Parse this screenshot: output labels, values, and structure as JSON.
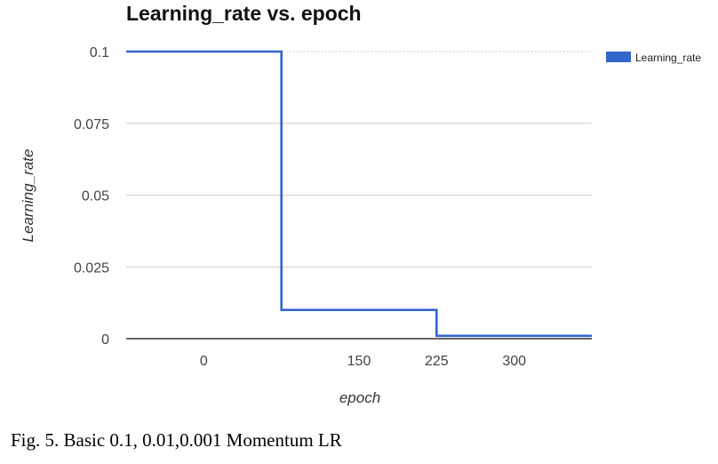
{
  "chart_data": {
    "type": "line",
    "title": "Learning_rate vs. epoch",
    "xlabel": "epoch",
    "ylabel": "Learning_rate",
    "x_ticks": [
      0,
      150,
      225,
      300
    ],
    "y_ticks": [
      0,
      0.025,
      0.05,
      0.075,
      0.1
    ],
    "y_tick_labels": [
      "0",
      "0.025",
      "0.05",
      "0.075",
      "0.1"
    ],
    "xlim": [
      -75,
      375
    ],
    "ylim": [
      0,
      0.1
    ],
    "grid": true,
    "legend_position": "top-right",
    "series": [
      {
        "name": "Learning_rate",
        "color": "#3366cc",
        "step": true,
        "x": [
          -75,
          75,
          75,
          225,
          225,
          375
        ],
        "y": [
          0.1,
          0.1,
          0.01,
          0.01,
          0.001,
          0.001
        ]
      }
    ]
  },
  "caption": "Fig. 5.   Basic 0.1, 0.01,0.001 Momentum LR"
}
